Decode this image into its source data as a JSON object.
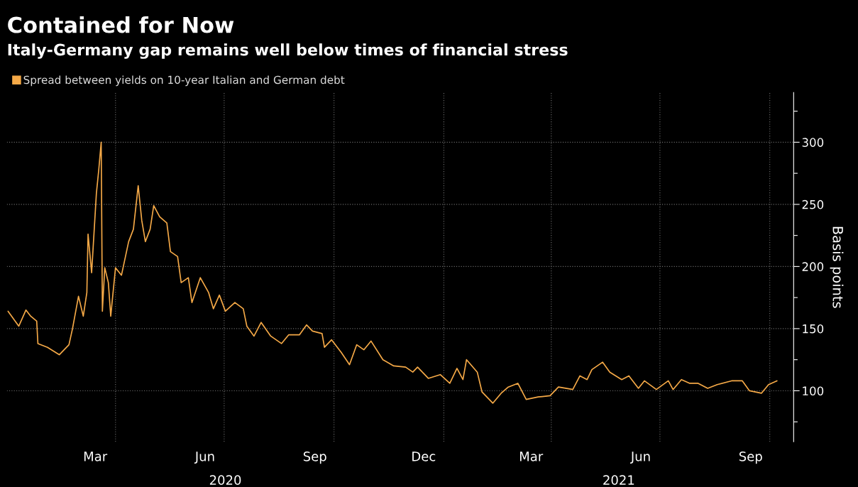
{
  "chart_data": {
    "type": "line",
    "title": "Contained for Now",
    "subtitle": "Italy-Germany gap remains well below times of financial stress",
    "ylabel": "Basis points",
    "legend": "top left",
    "grid": true,
    "annotations": [
      "2020",
      "2021"
    ],
    "xlim": [
      "2020-01-01",
      "2021-10-21"
    ],
    "ylim": [
      59,
      340
    ],
    "yticks": [
      {
        "value": 75,
        "label": null
      },
      100,
      {
        "value": 125,
        "label": null
      },
      150,
      {
        "value": 175,
        "label": null
      },
      200,
      {
        "value": 225,
        "label": null
      },
      250,
      {
        "value": 275,
        "label": null
      },
      300,
      {
        "value": 325,
        "label": null
      }
    ],
    "xticks": [
      {
        "value": "2020-03-15",
        "label": "Mar"
      },
      {
        "value": "2020-06-15",
        "label": "Jun"
      },
      {
        "value": "2020-09-15",
        "label": "Sep"
      },
      {
        "value": "2020-12-15",
        "label": "Dec"
      },
      {
        "value": "2021-03-15",
        "label": "Mar"
      },
      {
        "value": "2021-06-15",
        "label": "Jun"
      },
      {
        "value": "2021-09-15",
        "label": "Sep"
      },
      {
        "value": "2020-04-01",
        "label": null
      },
      {
        "value": "2020-07-01",
        "label": null
      },
      {
        "value": "2020-10-01",
        "label": null
      },
      {
        "value": "2021-01-01",
        "label": null
      },
      {
        "value": "2021-04-01",
        "label": null
      },
      {
        "value": "2021-07-01",
        "label": null
      },
      {
        "value": "2021-10-01",
        "label": null
      }
    ],
    "series": [
      {
        "name": "Spread between yields on 10-year Italian and German debt",
        "color": "#f5a947",
        "x": [
          "2020-01-02",
          "2020-01-11",
          "2020-01-17",
          "2020-01-21",
          "2020-01-26",
          "2020-01-27",
          "2020-02-04",
          "2020-02-14",
          "2020-02-22",
          "2020-02-25",
          "2020-03-01",
          "2020-03-05",
          "2020-03-08",
          "2020-03-09",
          "2020-03-12",
          "2020-03-16",
          "2020-03-18",
          "2020-03-20",
          "2020-03-21",
          "2020-03-23",
          "2020-03-26",
          "2020-03-28",
          "2020-04-01",
          "2020-04-06",
          "2020-04-12",
          "2020-04-16",
          "2020-04-20",
          "2020-04-23",
          "2020-04-26",
          "2020-04-30",
          "2020-05-03",
          "2020-05-08",
          "2020-05-14",
          "2020-05-17",
          "2020-05-23",
          "2020-05-26",
          "2020-06-01",
          "2020-06-04",
          "2020-06-11",
          "2020-06-18",
          "2020-06-22",
          "2020-06-27",
          "2020-07-02",
          "2020-07-10",
          "2020-07-17",
          "2020-07-20",
          "2020-07-26",
          "2020-08-01",
          "2020-08-09",
          "2020-08-18",
          "2020-08-24",
          "2020-09-02",
          "2020-09-08",
          "2020-09-13",
          "2020-09-21",
          "2020-09-23",
          "2020-09-29",
          "2020-10-07",
          "2020-10-14",
          "2020-10-20",
          "2020-10-26",
          "2020-11-01",
          "2020-11-11",
          "2020-11-20",
          "2020-11-30",
          "2020-12-06",
          "2020-12-10",
          "2020-12-19",
          "2020-12-29",
          "2021-01-06",
          "2021-01-12",
          "2021-01-17",
          "2021-01-20",
          "2021-01-29",
          "2021-02-02",
          "2021-02-11",
          "2021-02-18",
          "2021-02-24",
          "2021-03-04",
          "2021-03-11",
          "2021-03-21",
          "2021-03-31",
          "2021-04-07",
          "2021-04-19",
          "2021-04-25",
          "2021-05-01",
          "2021-05-05",
          "2021-05-14",
          "2021-05-20",
          "2021-05-30",
          "2021-06-05",
          "2021-06-13",
          "2021-06-18",
          "2021-06-28",
          "2021-07-08",
          "2021-07-12",
          "2021-07-19",
          "2021-07-26",
          "2021-08-02",
          "2021-08-10",
          "2021-08-18",
          "2021-08-30",
          "2021-09-08",
          "2021-09-14",
          "2021-09-24",
          "2021-09-30",
          "2021-10-07"
        ],
        "values": [
          164,
          152,
          165,
          160,
          156,
          138,
          135,
          129,
          137,
          150,
          176,
          160,
          179,
          226,
          195,
          259,
          278,
          300,
          164,
          199,
          187,
          160,
          199,
          193,
          220,
          230,
          265,
          237,
          220,
          230,
          249,
          240,
          235,
          212,
          208,
          187,
          191,
          171,
          191,
          179,
          166,
          177,
          164,
          171,
          166,
          152,
          144,
          155,
          144,
          138,
          145,
          145,
          153,
          148,
          146,
          135,
          141,
          131,
          121,
          137,
          133,
          140,
          125,
          120,
          119,
          115,
          119,
          110,
          113,
          106,
          118,
          109,
          125,
          115,
          99,
          90,
          98,
          103,
          106,
          93,
          95,
          96,
          103,
          101,
          112,
          109,
          117,
          123,
          115,
          109,
          112,
          102,
          108,
          101,
          108,
          101,
          109,
          106,
          106,
          102,
          105,
          108,
          108,
          100,
          98,
          105,
          108
        ]
      }
    ]
  }
}
